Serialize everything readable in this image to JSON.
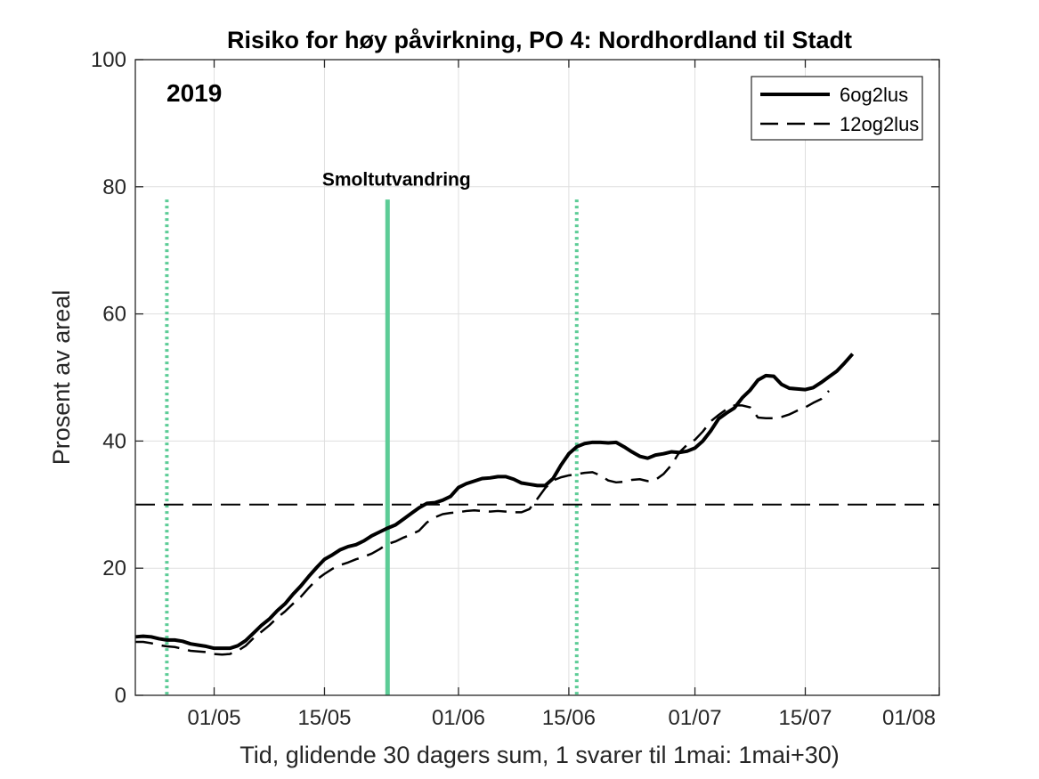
{
  "chart_data": {
    "type": "line",
    "title": "Risiko for høy påvirkning, PO 4: Nordhordland til Stadt",
    "xlabel": "Tid, glidende 30 dagers sum, 1 svarer til 1mai: 1mai+30)",
    "ylabel": "Prosent av areal",
    "xlim": [
      "2019-04-21",
      "2019-08-01"
    ],
    "ylim": [
      0,
      100
    ],
    "grid": true,
    "legend_position": "top-right",
    "year_label": "2019",
    "x_ticks": [
      {
        "date": "2019-05-01",
        "label": "01/05"
      },
      {
        "date": "2019-05-15",
        "label": "15/05"
      },
      {
        "date": "2019-06-01",
        "label": "01/06"
      },
      {
        "date": "2019-06-15",
        "label": "15/06"
      },
      {
        "date": "2019-07-01",
        "label": "01/07"
      },
      {
        "date": "2019-07-15",
        "label": "15/07"
      },
      {
        "date": "2019-08-01",
        "label": "01/08"
      }
    ],
    "y_ticks": [
      0,
      20,
      40,
      60,
      80,
      100
    ],
    "threshold": {
      "y": 30,
      "style": "dashed",
      "color": "#000000"
    },
    "vlines": [
      {
        "date": "2019-04-25",
        "style": "dotted",
        "color": "#5ccc96",
        "y_top": 78
      },
      {
        "date": "2019-05-23",
        "style": "solid",
        "color": "#5ccc96",
        "y_top": 78
      },
      {
        "date": "2019-06-16",
        "style": "dotted",
        "color": "#5ccc96",
        "y_top": 78
      }
    ],
    "annotation": {
      "text": "Smoltutvandring",
      "date": "2019-05-23",
      "y": 81
    },
    "series": [
      {
        "name": "6og2lus",
        "style": "solid",
        "color": "#000000",
        "points": [
          [
            "2019-04-21",
            9.2
          ],
          [
            "2019-04-22",
            9.3
          ],
          [
            "2019-04-23",
            9.2
          ],
          [
            "2019-04-24",
            8.9
          ],
          [
            "2019-04-25",
            8.7
          ],
          [
            "2019-04-26",
            8.7
          ],
          [
            "2019-04-27",
            8.5
          ],
          [
            "2019-04-28",
            8.1
          ],
          [
            "2019-04-29",
            7.9
          ],
          [
            "2019-04-30",
            7.7
          ],
          [
            "2019-05-01",
            7.4
          ],
          [
            "2019-05-02",
            7.4
          ],
          [
            "2019-05-03",
            7.4
          ],
          [
            "2019-05-04",
            7.8
          ],
          [
            "2019-05-05",
            8.6
          ],
          [
            "2019-05-06",
            9.8
          ],
          [
            "2019-05-07",
            11.0
          ],
          [
            "2019-05-08",
            12.0
          ],
          [
            "2019-05-09",
            13.3
          ],
          [
            "2019-05-10",
            14.4
          ],
          [
            "2019-05-11",
            15.9
          ],
          [
            "2019-05-12",
            17.2
          ],
          [
            "2019-05-13",
            18.7
          ],
          [
            "2019-05-14",
            20.1
          ],
          [
            "2019-05-15",
            21.4
          ],
          [
            "2019-05-16",
            22.1
          ],
          [
            "2019-05-17",
            22.9
          ],
          [
            "2019-05-18",
            23.4
          ],
          [
            "2019-05-19",
            23.7
          ],
          [
            "2019-05-20",
            24.3
          ],
          [
            "2019-05-21",
            25.1
          ],
          [
            "2019-05-22",
            25.7
          ],
          [
            "2019-05-23",
            26.3
          ],
          [
            "2019-05-24",
            26.8
          ],
          [
            "2019-05-25",
            27.7
          ],
          [
            "2019-05-26",
            28.6
          ],
          [
            "2019-05-27",
            29.5
          ],
          [
            "2019-05-28",
            30.2
          ],
          [
            "2019-05-29",
            30.3
          ],
          [
            "2019-05-30",
            30.7
          ],
          [
            "2019-05-31",
            31.3
          ],
          [
            "2019-06-01",
            32.7
          ],
          [
            "2019-06-02",
            33.3
          ],
          [
            "2019-06-03",
            33.7
          ],
          [
            "2019-06-04",
            34.1
          ],
          [
            "2019-06-05",
            34.2
          ],
          [
            "2019-06-06",
            34.4
          ],
          [
            "2019-06-07",
            34.4
          ],
          [
            "2019-06-08",
            34.0
          ],
          [
            "2019-06-09",
            33.4
          ],
          [
            "2019-06-10",
            33.2
          ],
          [
            "2019-06-11",
            33.0
          ],
          [
            "2019-06-12",
            33.0
          ],
          [
            "2019-06-13",
            34.1
          ],
          [
            "2019-06-14",
            36.2
          ],
          [
            "2019-06-15",
            38.0
          ],
          [
            "2019-06-16",
            39.1
          ],
          [
            "2019-06-17",
            39.6
          ],
          [
            "2019-06-18",
            39.8
          ],
          [
            "2019-06-19",
            39.8
          ],
          [
            "2019-06-20",
            39.7
          ],
          [
            "2019-06-21",
            39.8
          ],
          [
            "2019-06-22",
            39.1
          ],
          [
            "2019-06-23",
            38.3
          ],
          [
            "2019-06-24",
            37.6
          ],
          [
            "2019-06-25",
            37.3
          ],
          [
            "2019-06-26",
            37.8
          ],
          [
            "2019-06-27",
            38.0
          ],
          [
            "2019-06-28",
            38.3
          ],
          [
            "2019-06-29",
            38.2
          ],
          [
            "2019-06-30",
            38.4
          ],
          [
            "2019-07-01",
            38.9
          ],
          [
            "2019-07-02",
            40.0
          ],
          [
            "2019-07-03",
            41.6
          ],
          [
            "2019-07-04",
            43.5
          ],
          [
            "2019-07-05",
            44.4
          ],
          [
            "2019-07-06",
            45.2
          ],
          [
            "2019-07-07",
            46.8
          ],
          [
            "2019-07-08",
            48.0
          ],
          [
            "2019-07-09",
            49.6
          ],
          [
            "2019-07-10",
            50.3
          ],
          [
            "2019-07-11",
            50.2
          ],
          [
            "2019-07-12",
            48.9
          ],
          [
            "2019-07-13",
            48.3
          ],
          [
            "2019-07-14",
            48.2
          ],
          [
            "2019-07-15",
            48.1
          ],
          [
            "2019-07-16",
            48.4
          ],
          [
            "2019-07-17",
            49.2
          ],
          [
            "2019-07-18",
            50.1
          ],
          [
            "2019-07-19",
            51.0
          ],
          [
            "2019-07-20",
            52.3
          ],
          [
            "2019-07-21",
            53.7
          ]
        ]
      },
      {
        "name": "12og2lus",
        "style": "dashed",
        "color": "#000000",
        "points": [
          [
            "2019-04-21",
            8.4
          ],
          [
            "2019-04-22",
            8.4
          ],
          [
            "2019-04-23",
            8.2
          ],
          [
            "2019-04-24",
            7.9
          ],
          [
            "2019-04-25",
            7.7
          ],
          [
            "2019-04-26",
            7.6
          ],
          [
            "2019-04-27",
            7.3
          ],
          [
            "2019-04-28",
            7.0
          ],
          [
            "2019-04-29",
            6.9
          ],
          [
            "2019-04-30",
            6.8
          ],
          [
            "2019-05-01",
            6.5
          ],
          [
            "2019-05-02",
            6.4
          ],
          [
            "2019-05-03",
            6.5
          ],
          [
            "2019-05-04",
            7.0
          ],
          [
            "2019-05-05",
            7.8
          ],
          [
            "2019-05-06",
            9.0
          ],
          [
            "2019-05-07",
            10.0
          ],
          [
            "2019-05-08",
            11.0
          ],
          [
            "2019-05-09",
            12.2
          ],
          [
            "2019-05-10",
            13.2
          ],
          [
            "2019-05-11",
            14.4
          ],
          [
            "2019-05-12",
            15.5
          ],
          [
            "2019-05-13",
            16.9
          ],
          [
            "2019-05-14",
            18.2
          ],
          [
            "2019-05-15",
            19.1
          ],
          [
            "2019-05-16",
            19.9
          ],
          [
            "2019-05-17",
            20.5
          ],
          [
            "2019-05-18",
            20.9
          ],
          [
            "2019-05-19",
            21.4
          ],
          [
            "2019-05-20",
            21.8
          ],
          [
            "2019-05-21",
            22.3
          ],
          [
            "2019-05-22",
            23.0
          ],
          [
            "2019-05-23",
            23.8
          ],
          [
            "2019-05-24",
            24.2
          ],
          [
            "2019-05-25",
            24.8
          ],
          [
            "2019-05-26",
            25.3
          ],
          [
            "2019-05-27",
            25.9
          ],
          [
            "2019-05-28",
            27.2
          ],
          [
            "2019-05-29",
            28.0
          ],
          [
            "2019-05-30",
            28.5
          ],
          [
            "2019-05-31",
            28.7
          ],
          [
            "2019-06-01",
            28.8
          ],
          [
            "2019-06-02",
            29.0
          ],
          [
            "2019-06-03",
            29.1
          ],
          [
            "2019-06-04",
            29.0
          ],
          [
            "2019-06-05",
            28.9
          ],
          [
            "2019-06-06",
            29.0
          ],
          [
            "2019-06-07",
            28.9
          ],
          [
            "2019-06-08",
            28.8
          ],
          [
            "2019-06-09",
            28.8
          ],
          [
            "2019-06-10",
            29.3
          ],
          [
            "2019-06-11",
            30.9
          ],
          [
            "2019-06-12",
            32.6
          ],
          [
            "2019-06-13",
            33.8
          ],
          [
            "2019-06-14",
            34.3
          ],
          [
            "2019-06-15",
            34.6
          ],
          [
            "2019-06-16",
            34.8
          ],
          [
            "2019-06-17",
            35.0
          ],
          [
            "2019-06-18",
            35.1
          ],
          [
            "2019-06-19",
            34.6
          ],
          [
            "2019-06-20",
            33.8
          ],
          [
            "2019-06-21",
            33.5
          ],
          [
            "2019-06-22",
            33.6
          ],
          [
            "2019-06-23",
            33.9
          ],
          [
            "2019-06-24",
            34.0
          ],
          [
            "2019-06-25",
            33.7
          ],
          [
            "2019-06-26",
            33.9
          ],
          [
            "2019-06-27",
            34.8
          ],
          [
            "2019-06-28",
            36.2
          ],
          [
            "2019-06-29",
            38.2
          ],
          [
            "2019-06-30",
            39.4
          ],
          [
            "2019-07-01",
            40.2
          ],
          [
            "2019-07-02",
            41.5
          ],
          [
            "2019-07-03",
            43.1
          ],
          [
            "2019-07-04",
            44.1
          ],
          [
            "2019-07-05",
            45.0
          ],
          [
            "2019-07-06",
            45.6
          ],
          [
            "2019-07-07",
            45.6
          ],
          [
            "2019-07-08",
            45.3
          ],
          [
            "2019-07-09",
            43.7
          ],
          [
            "2019-07-10",
            43.6
          ],
          [
            "2019-07-11",
            43.6
          ],
          [
            "2019-07-12",
            43.8
          ],
          [
            "2019-07-13",
            44.2
          ],
          [
            "2019-07-14",
            44.8
          ],
          [
            "2019-07-15",
            45.3
          ],
          [
            "2019-07-16",
            46.0
          ],
          [
            "2019-07-17",
            46.6
          ],
          [
            "2019-07-18",
            47.9
          ]
        ]
      }
    ]
  }
}
